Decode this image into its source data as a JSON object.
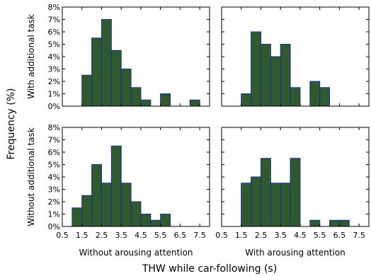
{
  "chart_data": {
    "type": "bar",
    "xlabel": "THW while car-following (s)",
    "ylabel": "Frequency (%)",
    "row_labels": [
      "With additional task",
      "Without additional task"
    ],
    "col_labels": [
      "Without arousing attention",
      "With arousing attention"
    ],
    "x_ticks": [
      "0.5",
      "1.5",
      "2.5",
      "3.5",
      "4.5",
      "5.5",
      "6.5",
      "7.5"
    ],
    "y_ticks": [
      "0%",
      "1%",
      "2%",
      "3%",
      "4%",
      "5%",
      "6%",
      "7%",
      "8%"
    ],
    "xlim": [
      0.5,
      8.0
    ],
    "ylim": [
      0,
      8
    ],
    "bin_width": 0.5,
    "bin_starts": [
      1.5,
      2.0,
      2.5,
      3.0,
      3.5,
      4.0,
      4.5,
      5.0,
      5.5,
      6.0,
      6.5,
      7.0
    ],
    "panels": [
      {
        "row": 0,
        "col": 0,
        "values": [
          2.5,
          5.5,
          7.0,
          4.5,
          3.0,
          1.5,
          0.5,
          0,
          1.0,
          0,
          0,
          0.5
        ]
      },
      {
        "row": 0,
        "col": 1,
        "values": [
          1.0,
          6.0,
          5.0,
          4.0,
          5.0,
          1.5,
          0,
          2.0,
          1.5,
          0,
          0,
          0
        ]
      },
      {
        "row": 1,
        "col": 0,
        "values": [
          2.5,
          5.0,
          3.5,
          6.5,
          3.5,
          2.0,
          1.0,
          0.5,
          1.0,
          0,
          0,
          0
        ],
        "extra": [
          {
            "start": 1.0,
            "value": 1.5
          }
        ]
      },
      {
        "row": 1,
        "col": 1,
        "values": [
          3.5,
          4.0,
          5.5,
          3.5,
          3.5,
          5.5,
          0,
          0.5,
          0,
          0.5,
          0.5,
          0
        ]
      }
    ]
  }
}
